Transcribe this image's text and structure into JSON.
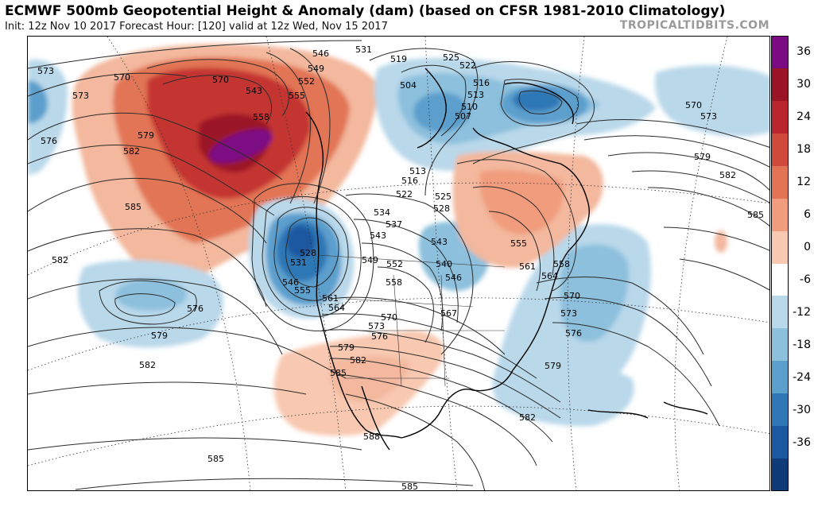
{
  "title": "ECMWF 500mb Geopotential Height & Anomaly (dam) (based on CFSR 1981-2010 Climatology)",
  "subtitle": "Init: 12z Nov 10 2017   Forecast Hour: [120]   valid at 12z Wed, Nov 15 2017",
  "brand": "TROPICALTIDBITS.COM",
  "colorbar": {
    "labels": [
      "36",
      "30",
      "24",
      "18",
      "12",
      "6",
      "0",
      "-6",
      "-12",
      "-18",
      "-24",
      "-30",
      "-36"
    ],
    "colors": [
      "#7b0b83",
      "#9b1426",
      "#b9252c",
      "#cf4a3a",
      "#e27455",
      "#f09c7d",
      "#f8c8b0",
      "#ffffff",
      "#b9d8ea",
      "#8cc0dd",
      "#5b9fcd",
      "#2f77b5",
      "#1b58a0",
      "#0f3b78"
    ]
  },
  "height_labels": [
    "573",
    "570",
    "573",
    "576",
    "579",
    "582",
    "570",
    "543",
    "546",
    "549",
    "552",
    "555",
    "558",
    "531",
    "519",
    "525",
    "522",
    "516",
    "513",
    "510",
    "507",
    "504",
    "516",
    "513",
    "522",
    "528",
    "525",
    "534",
    "537",
    "543",
    "549",
    "552",
    "555",
    "558",
    "561",
    "564",
    "567",
    "570",
    "573",
    "576",
    "579",
    "582",
    "585",
    "588",
    "531",
    "528",
    "546",
    "540",
    "543",
    "546",
    "555",
    "561",
    "564",
    "558",
    "570",
    "573",
    "576",
    "579",
    "582",
    "585",
    "570",
    "573",
    "579",
    "582",
    "585",
    "576",
    "579",
    "582",
    "582",
    "585",
    "585"
  ]
}
